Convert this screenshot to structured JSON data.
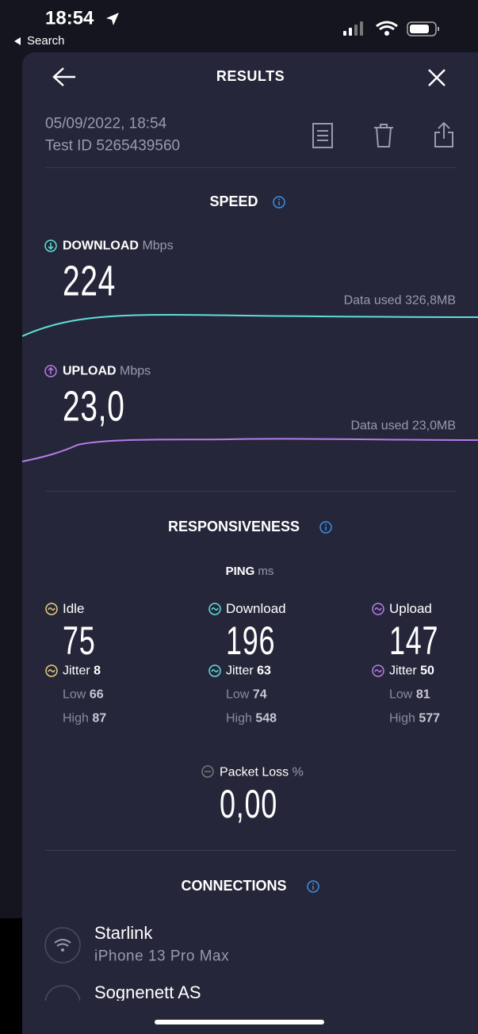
{
  "status_bar": {
    "time": "18:54",
    "back": "Search"
  },
  "header": {
    "title": "RESULTS"
  },
  "test": {
    "date": "05/09/2022, 18:54",
    "test_id": "Test ID 5265439560"
  },
  "speed": {
    "title": "SPEED",
    "download": {
      "label": "DOWNLOAD",
      "unit": "Mbps",
      "value": "224",
      "data_used": "Data used 326,8MB"
    },
    "upload": {
      "label": "UPLOAD",
      "unit": "Mbps",
      "value": "23,0",
      "data_used": "Data used 23,0MB"
    }
  },
  "responsiveness": {
    "title": "RESPONSIVENESS",
    "ping_label": "PING",
    "ping_unit": "ms",
    "columns": [
      {
        "label": "Idle",
        "value": "75",
        "jitter_label": "Jitter",
        "jitter": "8",
        "low_label": "Low",
        "low": "66",
        "high_label": "High",
        "high": "87"
      },
      {
        "label": "Download",
        "value": "196",
        "jitter_label": "Jitter",
        "jitter": "63",
        "low_label": "Low",
        "low": "74",
        "high_label": "High",
        "high": "548"
      },
      {
        "label": "Upload",
        "value": "147",
        "jitter_label": "Jitter",
        "jitter": "50",
        "low_label": "Low",
        "low": "81",
        "high_label": "High",
        "high": "577"
      }
    ],
    "packet_loss": {
      "label": "Packet Loss",
      "unit": "%",
      "value": "0,00"
    }
  },
  "connections": {
    "title": "CONNECTIONS",
    "items": [
      {
        "name": "Starlink",
        "device": "iPhone 13 Pro Max"
      },
      {
        "name": "Sognenett AS"
      }
    ]
  }
}
